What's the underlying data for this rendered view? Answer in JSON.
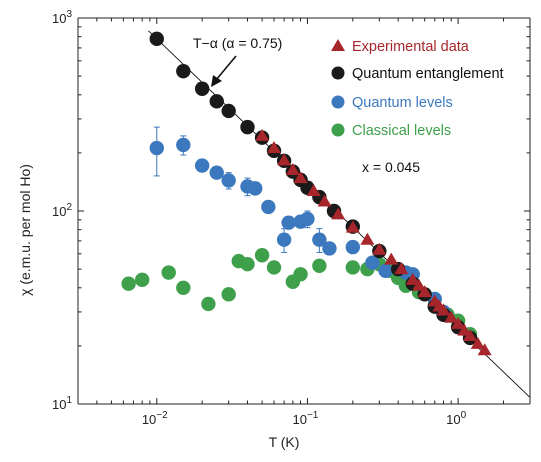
{
  "chart_data": {
    "type": "scatter",
    "xscale": "log",
    "yscale": "log",
    "xlim": [
      0.003,
      3
    ],
    "ylim": [
      10,
      1000
    ],
    "xlabel": "T (K)",
    "ylabel": "χ (e.m.u. per mol Ho)",
    "x_ticks": [
      {
        "base": "10",
        "exp": "−2"
      },
      {
        "base": "10",
        "exp": "−1"
      },
      {
        "base": "10",
        "exp": "0"
      }
    ],
    "y_ticks": [
      {
        "base": "10",
        "exp": "1"
      },
      {
        "base": "10",
        "exp": "2"
      },
      {
        "base": "10",
        "exp": "3"
      }
    ],
    "grid": false,
    "legend_position": "top-right",
    "annotations": {
      "powerlaw_label": "T−α (α = 0.75)",
      "x_value": "x = 0.045"
    },
    "fit_line": {
      "name": "T−α",
      "alpha": 0.75,
      "x_range": [
        0.0088,
        3
      ],
      "y_at_0p01": 780
    },
    "series": [
      {
        "name": "Experimental data",
        "marker": "triangle",
        "color": "#a6262c",
        "points": [
          [
            0.05,
            245
          ],
          [
            0.06,
            212
          ],
          [
            0.07,
            183
          ],
          [
            0.08,
            163
          ],
          [
            0.09,
            148
          ],
          [
            0.11,
            127
          ],
          [
            0.13,
            112
          ],
          [
            0.16,
            96
          ],
          [
            0.2,
            82
          ],
          [
            0.25,
            71
          ],
          [
            0.3,
            63
          ],
          [
            0.36,
            56
          ],
          [
            0.42,
            50
          ],
          [
            0.5,
            44
          ],
          [
            0.55,
            41
          ],
          [
            0.6,
            38
          ],
          [
            0.7,
            34
          ],
          [
            0.75,
            32
          ],
          [
            0.8,
            30.5
          ],
          [
            0.9,
            28
          ],
          [
            1.0,
            26
          ],
          [
            1.1,
            24
          ],
          [
            1.2,
            22.5
          ],
          [
            1.35,
            20.5
          ],
          [
            1.5,
            19
          ]
        ]
      },
      {
        "name": "Quantum entanglement",
        "marker": "circle",
        "color": "#1a1a1a",
        "points": [
          [
            0.01,
            780
          ],
          [
            0.015,
            530
          ],
          [
            0.02,
            430
          ],
          [
            0.025,
            370
          ],
          [
            0.03,
            330
          ],
          [
            0.04,
            272
          ],
          [
            0.05,
            240
          ],
          [
            0.06,
            205
          ],
          [
            0.07,
            182
          ],
          [
            0.08,
            160
          ],
          [
            0.09,
            145
          ],
          [
            0.1,
            132
          ],
          [
            0.12,
            118
          ],
          [
            0.15,
            100
          ],
          [
            0.2,
            83
          ],
          [
            0.3,
            62
          ],
          [
            0.4,
            50
          ],
          [
            0.5,
            42
          ],
          [
            0.6,
            37
          ],
          [
            0.7,
            32
          ],
          [
            0.8,
            29
          ],
          [
            1.0,
            25
          ],
          [
            1.2,
            22
          ]
        ]
      },
      {
        "name": "Quantum levels",
        "marker": "circle",
        "color": "#3b78bd",
        "points": [
          [
            0.01,
            212,
            60
          ],
          [
            0.015,
            220,
            25
          ],
          [
            0.02,
            172,
            0
          ],
          [
            0.025,
            158,
            0
          ],
          [
            0.03,
            144,
            14
          ],
          [
            0.04,
            134,
            14
          ],
          [
            0.045,
            131,
            0
          ],
          [
            0.055,
            105,
            0
          ],
          [
            0.07,
            71,
            10
          ],
          [
            0.075,
            87,
            0
          ],
          [
            0.09,
            88,
            6
          ],
          [
            0.1,
            91,
            9
          ],
          [
            0.12,
            71,
            10
          ],
          [
            0.14,
            64,
            0
          ],
          [
            0.2,
            65,
            0
          ],
          [
            0.27,
            54,
            0
          ],
          [
            0.33,
            49,
            0
          ],
          [
            0.45,
            48,
            0
          ],
          [
            0.5,
            47,
            0
          ],
          [
            0.7,
            35,
            0
          ],
          [
            0.8,
            30,
            0
          ]
        ]
      },
      {
        "name": "Classical levels",
        "marker": "circle",
        "color": "#3ea04a",
        "points": [
          [
            0.0065,
            42
          ],
          [
            0.008,
            44
          ],
          [
            0.012,
            48
          ],
          [
            0.015,
            40
          ],
          [
            0.022,
            33
          ],
          [
            0.03,
            37
          ],
          [
            0.035,
            55
          ],
          [
            0.04,
            53
          ],
          [
            0.05,
            59
          ],
          [
            0.06,
            51
          ],
          [
            0.08,
            43
          ],
          [
            0.09,
            47
          ],
          [
            0.12,
            52
          ],
          [
            0.2,
            51
          ],
          [
            0.25,
            50
          ],
          [
            0.3,
            53
          ],
          [
            0.35,
            49
          ],
          [
            0.4,
            45
          ],
          [
            0.45,
            41
          ],
          [
            0.55,
            38
          ],
          [
            0.7,
            32
          ],
          [
            0.85,
            29
          ],
          [
            1.0,
            27
          ],
          [
            1.2,
            23
          ]
        ]
      }
    ]
  }
}
